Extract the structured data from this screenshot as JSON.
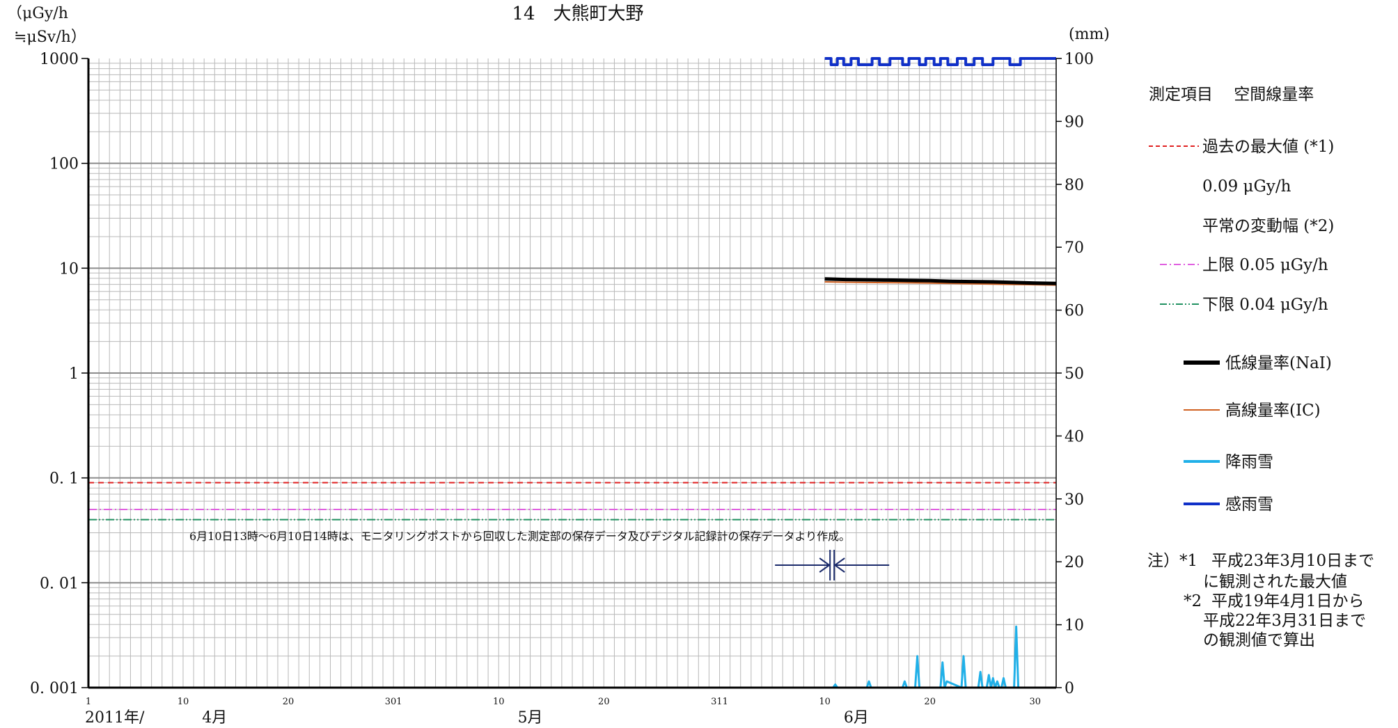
{
  "chart_data": {
    "type": "line",
    "title": "14　大熊町大野",
    "left_unit": [
      "（μGy/h",
      "≒μSv/h）"
    ],
    "right_unit": "(mm)",
    "left_axis": {
      "scale": "log",
      "ylim": [
        0.001,
        1000
      ],
      "tick_values": [
        1000,
        100,
        10,
        1,
        0.1,
        0.01,
        0.001
      ],
      "tick_labels": [
        "1000",
        "100",
        "10",
        "1",
        "0. 1",
        "0. 01",
        "0. 001"
      ]
    },
    "right_axis": {
      "ylim": [
        0,
        100
      ],
      "tick_values": [
        100,
        90,
        80,
        70,
        60,
        50,
        40,
        30,
        20,
        10,
        0
      ],
      "tick_labels": [
        "100",
        "90",
        "80",
        "70",
        "60",
        "50",
        "40",
        "30",
        "20",
        "10",
        "0"
      ]
    },
    "x_axis": {
      "range_days": [
        0,
        92
      ],
      "ticks": [
        {
          "day": 0,
          "label": "1"
        },
        {
          "day": 9,
          "label": "10"
        },
        {
          "day": 19,
          "label": "20"
        },
        {
          "day": 29,
          "label": "301"
        },
        {
          "day": 39,
          "label": "10"
        },
        {
          "day": 49,
          "label": "20"
        },
        {
          "day": 60,
          "label": "311"
        },
        {
          "day": 70,
          "label": "10"
        },
        {
          "day": 80,
          "label": "20"
        },
        {
          "day": 90,
          "label": "30"
        }
      ],
      "months": [
        {
          "day": 12,
          "label": "4月"
        },
        {
          "day": 42,
          "label": "5月"
        },
        {
          "day": 73,
          "label": "6月"
        }
      ],
      "year_label": "2011年/"
    },
    "grid": true,
    "reference_lines": [
      {
        "name": "過去の最大値 (*1)",
        "value": 0.09,
        "color": "#e02020",
        "style": "dashed"
      },
      {
        "name": "上限",
        "value": 0.05,
        "color": "#e060e0",
        "style": "dashdot"
      },
      {
        "name": "下限",
        "value": 0.04,
        "color": "#209060",
        "style": "dashdotdot"
      }
    ],
    "series": [
      {
        "name": "低線量率(NaI)",
        "axis": "left",
        "color": "#000000",
        "x": [
          70.0,
          72,
          74,
          76,
          78,
          80,
          82,
          84,
          86,
          88,
          90,
          92
        ],
        "y": [
          7.9,
          7.8,
          7.75,
          7.7,
          7.65,
          7.6,
          7.5,
          7.45,
          7.4,
          7.3,
          7.2,
          7.15
        ]
      },
      {
        "name": "高線量率(IC)",
        "axis": "left",
        "color": "#d06020",
        "x": [
          70.0,
          72,
          74,
          76,
          78,
          80,
          82,
          84,
          86,
          88,
          90,
          92
        ],
        "y": [
          7.4,
          7.35,
          7.3,
          7.28,
          7.25,
          7.2,
          7.15,
          7.1,
          7.05,
          7.0,
          6.95,
          6.9
        ]
      },
      {
        "name": "降雨雪",
        "axis": "right",
        "color": "#20b0e8",
        "x": [
          70.0,
          70.8,
          71.0,
          71.2,
          74.0,
          74.2,
          74.4,
          77.4,
          77.6,
          77.8,
          78.6,
          78.8,
          79.0,
          81.0,
          81.2,
          81.4,
          81.6,
          83.0,
          83.2,
          83.4,
          84.6,
          84.8,
          85.0,
          85.4,
          85.6,
          85.8,
          86.0,
          86.2,
          86.4,
          86.6,
          86.8,
          87.0,
          87.2,
          87.4,
          87.6,
          88.0,
          88.2,
          88.4,
          92.0
        ],
        "y": [
          0,
          0,
          0.5,
          0,
          0,
          1,
          0,
          0,
          1,
          0,
          0,
          5,
          0,
          0,
          4,
          0,
          1,
          0,
          5,
          0,
          0,
          2.5,
          0,
          0,
          2,
          0,
          1.5,
          0,
          1,
          0,
          0,
          1.5,
          0,
          0,
          0,
          0,
          9.7,
          0,
          0
        ]
      },
      {
        "name": "感雨雪",
        "axis": "right",
        "color": "#1030c8",
        "x": [
          70,
          70.6,
          70.6,
          71.2,
          71.2,
          71.8,
          71.8,
          72.5,
          72.5,
          73.2,
          73.2,
          74.5,
          74.5,
          75.2,
          75.2,
          76.2,
          76.2,
          77.4,
          77.4,
          78.0,
          78.0,
          79.0,
          79.0,
          79.6,
          79.6,
          80.4,
          80.4,
          81.0,
          81.0,
          81.7,
          81.7,
          82.6,
          82.6,
          83.4,
          83.4,
          84.2,
          84.2,
          85.0,
          85.0,
          86.0,
          86.0,
          87.6,
          87.6,
          88.6,
          88.6,
          92
        ],
        "y": [
          100,
          100,
          99,
          99,
          100,
          100,
          99,
          99,
          100,
          100,
          99,
          99,
          100,
          100,
          99,
          99,
          100,
          100,
          99,
          99,
          100,
          100,
          99,
          99,
          100,
          100,
          99,
          99,
          100,
          100,
          99,
          99,
          100,
          100,
          99,
          99,
          100,
          100,
          99,
          99,
          100,
          100,
          99,
          99,
          100,
          100
        ]
      }
    ],
    "annotation": "6月10日13時～6月10日14時は、モニタリングポストから回収した測定部の保存データ及びデジタル記録計の保存データより作成。",
    "annotation_arrow_day": 70.7
  },
  "legend": {
    "header": "測定項目　 空間線量率",
    "max_label": "過去の最大値 (*1)",
    "max_value": "0.09 μGy/h",
    "range_label": "平常の変動幅 (*2)",
    "upper_label": "上限 0.05 μGy/h",
    "lower_label": "下限 0.04 μGy/h",
    "nai_label": "低線量率(NaI)",
    "ic_label": "高線量率(IC)",
    "rain_label": "降雨雪",
    "sense_label": "感雨雪"
  },
  "notes": {
    "prefix": "注）*1",
    "n1_line1": "平成23年3月10日まで",
    "n1_line2": "に観測された最大値",
    "n2_prefix": "*2",
    "n2_line1": "平成19年4月1日から",
    "n2_line2": "平成22年3月31日まで",
    "n2_line3": "の観測値で算出"
  }
}
